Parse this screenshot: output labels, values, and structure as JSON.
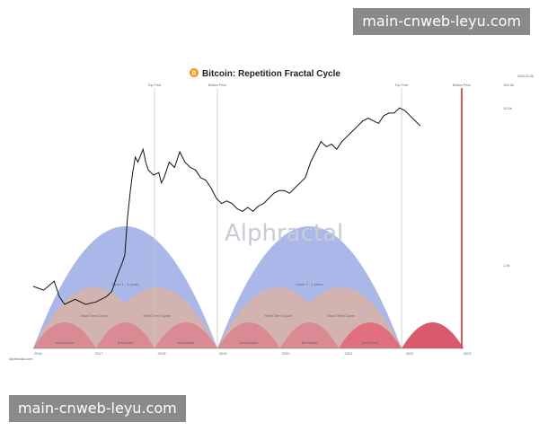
{
  "watermark": "main-cnweb-leyu.com",
  "chart_data": {
    "type": "line",
    "title": "Bitcoin: Repetition Fractal Cycle",
    "title_icon": "bitcoin-icon",
    "date_label": "2024-02-08",
    "x_ticks": [
      "2016",
      "2017",
      "2018",
      "2019",
      "2020",
      "2021",
      "2022",
      "2023"
    ],
    "y_ticks": [
      "100.0k",
      "10.0k",
      "1.0k"
    ],
    "markers": [
      {
        "label": "Top Price"
      },
      {
        "label": "Bottom Price"
      },
      {
        "label": "Top Price"
      },
      {
        "label": "Bottom Price"
      }
    ],
    "cycles": [
      {
        "name": "Cycle 1 - 4 years"
      },
      {
        "name": "Cycle 2 - 4 years"
      }
    ],
    "mid_cycles": [
      "Short Term Cycle",
      "Short Term Cycle",
      "Short Term Cycle",
      "Short Term Cycle"
    ],
    "phases": [
      "Accumulation",
      "Bull Market",
      "Bear Market",
      "Accumulation",
      "Bull Market",
      "Bear Market"
    ],
    "brand": "Alphractal",
    "source_label": "Alphractal.com",
    "series": [
      {
        "values": [
          [
            0.0,
            0.24
          ],
          [
            0.02,
            0.225
          ],
          [
            0.04,
            0.26
          ],
          [
            0.05,
            0.2
          ],
          [
            0.06,
            0.17
          ],
          [
            0.08,
            0.19
          ],
          [
            0.1,
            0.17
          ],
          [
            0.12,
            0.18
          ],
          [
            0.14,
            0.2
          ],
          [
            0.15,
            0.22
          ],
          [
            0.16,
            0.28
          ],
          [
            0.17,
            0.33
          ],
          [
            0.175,
            0.36
          ],
          [
            0.18,
            0.5
          ],
          [
            0.185,
            0.6
          ],
          [
            0.19,
            0.68
          ],
          [
            0.195,
            0.74
          ],
          [
            0.2,
            0.72
          ],
          [
            0.21,
            0.77
          ],
          [
            0.215,
            0.72
          ],
          [
            0.22,
            0.69
          ],
          [
            0.23,
            0.67
          ],
          [
            0.24,
            0.68
          ],
          [
            0.245,
            0.64
          ],
          [
            0.25,
            0.66
          ],
          [
            0.26,
            0.72
          ],
          [
            0.27,
            0.7
          ],
          [
            0.28,
            0.76
          ],
          [
            0.285,
            0.74
          ],
          [
            0.29,
            0.72
          ],
          [
            0.3,
            0.7
          ],
          [
            0.31,
            0.69
          ],
          [
            0.32,
            0.66
          ],
          [
            0.33,
            0.65
          ],
          [
            0.34,
            0.62
          ],
          [
            0.35,
            0.58
          ],
          [
            0.36,
            0.56
          ],
          [
            0.37,
            0.57
          ],
          [
            0.38,
            0.56
          ],
          [
            0.39,
            0.54
          ],
          [
            0.4,
            0.53
          ],
          [
            0.41,
            0.545
          ],
          [
            0.42,
            0.53
          ],
          [
            0.43,
            0.55
          ],
          [
            0.44,
            0.56
          ],
          [
            0.45,
            0.58
          ],
          [
            0.46,
            0.6
          ],
          [
            0.47,
            0.61
          ],
          [
            0.48,
            0.61
          ],
          [
            0.49,
            0.6
          ],
          [
            0.5,
            0.62
          ],
          [
            0.51,
            0.64
          ],
          [
            0.52,
            0.66
          ],
          [
            0.53,
            0.72
          ],
          [
            0.54,
            0.76
          ],
          [
            0.55,
            0.8
          ],
          [
            0.56,
            0.78
          ],
          [
            0.57,
            0.79
          ],
          [
            0.58,
            0.77
          ],
          [
            0.59,
            0.8
          ],
          [
            0.6,
            0.82
          ],
          [
            0.61,
            0.84
          ],
          [
            0.62,
            0.86
          ],
          [
            0.63,
            0.88
          ],
          [
            0.64,
            0.89
          ],
          [
            0.65,
            0.88
          ],
          [
            0.66,
            0.87
          ],
          [
            0.67,
            0.9
          ],
          [
            0.68,
            0.91
          ],
          [
            0.69,
            0.91
          ],
          [
            0.7,
            0.93
          ],
          [
            0.71,
            0.92
          ],
          [
            0.72,
            0.9
          ],
          [
            0.73,
            0.88
          ],
          [
            0.74,
            0.86
          ]
        ]
      }
    ]
  }
}
